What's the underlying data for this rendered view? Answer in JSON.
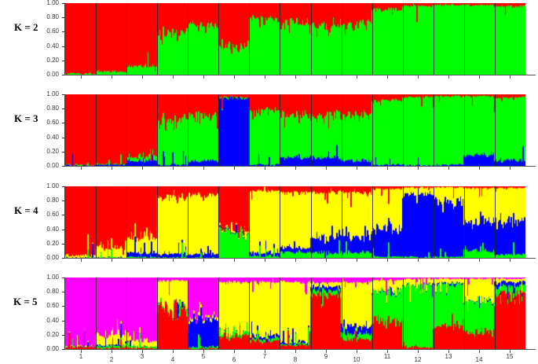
{
  "chart_data": [
    {
      "type": "bar",
      "subtype": "stacked-structure-admixture",
      "title": "K = 2",
      "xlabel": "",
      "ylabel": "",
      "ylim": [
        0,
        1
      ],
      "yticks": [
        "1.00",
        "0.80",
        "0.60",
        "0.40",
        "0.20",
        "0.00"
      ],
      "categories": [
        "1",
        "2",
        "3",
        "4",
        "5",
        "6",
        "7",
        "8",
        "9",
        "10",
        "11",
        "12",
        "13",
        "14",
        "15"
      ],
      "show_xtick_labels": false,
      "series": [
        {
          "name": "cluster-red",
          "color": "#ff0000",
          "values": [
            0.98,
            0.95,
            0.86,
            0.38,
            0.32,
            0.62,
            0.2,
            0.28,
            0.3,
            0.28,
            0.08,
            0.03,
            0.02,
            0.02,
            0.04
          ]
        },
        {
          "name": "cluster-green",
          "color": "#00ff00",
          "values": [
            0.02,
            0.05,
            0.14,
            0.62,
            0.68,
            0.38,
            0.8,
            0.72,
            0.7,
            0.72,
            0.92,
            0.97,
            0.98,
            0.98,
            0.96
          ]
        }
      ]
    },
    {
      "type": "bar",
      "subtype": "stacked-structure-admixture",
      "title": "K = 3",
      "ylim": [
        0,
        1
      ],
      "yticks": [
        "1.00",
        "0.80",
        "0.60",
        "0.40",
        "0.20",
        "0.00"
      ],
      "categories": [
        "1",
        "2",
        "3",
        "4",
        "5",
        "6",
        "7",
        "8",
        "9",
        "10",
        "11",
        "12",
        "13",
        "14",
        "15"
      ],
      "show_xtick_labels": false,
      "series": [
        {
          "name": "cluster-red",
          "color": "#ff0000",
          "values": [
            0.98,
            0.97,
            0.86,
            0.38,
            0.3,
            0.03,
            0.22,
            0.28,
            0.3,
            0.28,
            0.08,
            0.03,
            0.02,
            0.02,
            0.04
          ]
        },
        {
          "name": "cluster-green",
          "color": "#00ff00",
          "values": [
            0.01,
            0.01,
            0.06,
            0.6,
            0.62,
            0.01,
            0.76,
            0.6,
            0.58,
            0.64,
            0.9,
            0.96,
            0.96,
            0.82,
            0.88
          ]
        },
        {
          "name": "cluster-blue",
          "color": "#0000ff",
          "values": [
            0.01,
            0.02,
            0.08,
            0.02,
            0.08,
            0.96,
            0.02,
            0.12,
            0.12,
            0.08,
            0.02,
            0.01,
            0.02,
            0.16,
            0.08
          ]
        }
      ]
    },
    {
      "type": "bar",
      "subtype": "stacked-structure-admixture",
      "title": "K = 4",
      "ylim": [
        0,
        1
      ],
      "yticks": [
        "1.00",
        "0.80",
        "0.60",
        "0.40",
        "0.20",
        "0.00"
      ],
      "categories": [
        "1",
        "2",
        "3",
        "4",
        "5",
        "6",
        "7",
        "8",
        "9",
        "10",
        "11",
        "12",
        "13",
        "14",
        "15"
      ],
      "show_xtick_labels": false,
      "series": [
        {
          "name": "cluster-red",
          "color": "#ff0000",
          "values": [
            0.97,
            0.86,
            0.72,
            0.14,
            0.12,
            0.6,
            0.06,
            0.08,
            0.08,
            0.08,
            0.03,
            0.01,
            0.01,
            0.02,
            0.02
          ]
        },
        {
          "name": "cluster-yellow",
          "color": "#ffff00",
          "values": [
            0.03,
            0.13,
            0.2,
            0.8,
            0.82,
            0.02,
            0.86,
            0.78,
            0.62,
            0.62,
            0.55,
            0.08,
            0.2,
            0.5,
            0.48
          ]
        },
        {
          "name": "cluster-blue",
          "color": "#0000ff",
          "values": [
            0.0,
            0.0,
            0.06,
            0.05,
            0.05,
            0.01,
            0.05,
            0.06,
            0.22,
            0.22,
            0.4,
            0.89,
            0.77,
            0.38,
            0.45
          ]
        },
        {
          "name": "cluster-green",
          "color": "#00ff00",
          "values": [
            0.0,
            0.01,
            0.02,
            0.01,
            0.01,
            0.37,
            0.03,
            0.08,
            0.08,
            0.08,
            0.02,
            0.02,
            0.02,
            0.1,
            0.05
          ]
        }
      ]
    },
    {
      "type": "bar",
      "subtype": "stacked-structure-admixture",
      "title": "K = 5",
      "ylim": [
        0,
        1
      ],
      "yticks": [
        "1.00",
        "0.80",
        "0.60",
        "0.40",
        "0.20",
        "0.00"
      ],
      "categories": [
        "1",
        "2",
        "3",
        "4",
        "5",
        "6",
        "7",
        "8",
        "9",
        "10",
        "11",
        "12",
        "13",
        "14",
        "15"
      ],
      "show_xtick_labels": true,
      "series": [
        {
          "name": "cluster-magenta",
          "color": "#ff00ff",
          "values": [
            0.96,
            0.8,
            0.88,
            0.04,
            0.55,
            0.06,
            0.06,
            0.06,
            0.06,
            0.06,
            0.03,
            0.01,
            0.01,
            0.01,
            0.01
          ]
        },
        {
          "name": "cluster-yellow",
          "color": "#ffff00",
          "values": [
            0.01,
            0.14,
            0.08,
            0.34,
            0.04,
            0.72,
            0.74,
            0.84,
            0.06,
            0.62,
            0.14,
            0.08,
            0.06,
            0.3,
            0.04
          ]
        },
        {
          "name": "cluster-blue",
          "color": "#0000ff",
          "values": [
            0.0,
            0.01,
            0.0,
            0.0,
            0.38,
            0.0,
            0.04,
            0.02,
            0.06,
            0.1,
            0.01,
            0.0,
            0.02,
            0.01,
            0.06
          ]
        },
        {
          "name": "cluster-green",
          "color": "#00ff00",
          "values": [
            0.0,
            0.03,
            0.02,
            0.02,
            0.02,
            0.04,
            0.04,
            0.02,
            0.06,
            0.08,
            0.42,
            0.88,
            0.58,
            0.42,
            0.09
          ]
        },
        {
          "name": "cluster-red",
          "color": "#ff0000",
          "values": [
            0.03,
            0.02,
            0.02,
            0.6,
            0.01,
            0.18,
            0.12,
            0.06,
            0.76,
            0.14,
            0.4,
            0.03,
            0.33,
            0.26,
            0.8
          ]
        }
      ]
    }
  ],
  "panels": [
    {
      "k_label": "K = 2"
    },
    {
      "k_label": "K = 3"
    },
    {
      "k_label": "K = 4"
    },
    {
      "k_label": "K = 5"
    }
  ],
  "yticks": [
    "1.00",
    "0.80",
    "0.60",
    "0.40",
    "0.20",
    "0.00"
  ],
  "population_labels": [
    "1",
    "2",
    "3",
    "4",
    "5",
    "6",
    "7",
    "8",
    "9",
    "10",
    "11",
    "12",
    "13",
    "14",
    "15"
  ]
}
